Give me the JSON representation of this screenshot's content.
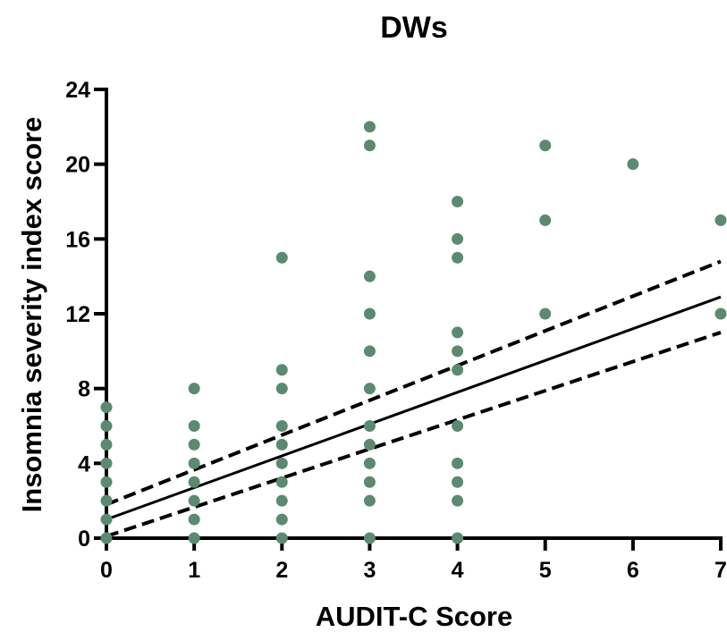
{
  "chart_data": {
    "type": "scatter",
    "title": "DWs",
    "xlabel": "AUDIT-C Score",
    "ylabel": "Insomnia severity index score",
    "xlim": [
      0,
      7
    ],
    "ylim": [
      0,
      24
    ],
    "xticks": [
      0,
      1,
      2,
      3,
      4,
      5,
      6,
      7
    ],
    "yticks": [
      0,
      4,
      8,
      12,
      16,
      20,
      24
    ],
    "grid": false,
    "legend": "none",
    "points": [
      {
        "x": 0,
        "y": 0
      },
      {
        "x": 0,
        "y": 1
      },
      {
        "x": 0,
        "y": 2
      },
      {
        "x": 0,
        "y": 3
      },
      {
        "x": 0,
        "y": 4
      },
      {
        "x": 0,
        "y": 5
      },
      {
        "x": 0,
        "y": 6
      },
      {
        "x": 0,
        "y": 7
      },
      {
        "x": 1,
        "y": 0
      },
      {
        "x": 1,
        "y": 1
      },
      {
        "x": 1,
        "y": 2
      },
      {
        "x": 1,
        "y": 3
      },
      {
        "x": 1,
        "y": 4
      },
      {
        "x": 1,
        "y": 5
      },
      {
        "x": 1,
        "y": 6
      },
      {
        "x": 1,
        "y": 8
      },
      {
        "x": 2,
        "y": 0
      },
      {
        "x": 2,
        "y": 1
      },
      {
        "x": 2,
        "y": 2
      },
      {
        "x": 2,
        "y": 3
      },
      {
        "x": 2,
        "y": 4
      },
      {
        "x": 2,
        "y": 5
      },
      {
        "x": 2,
        "y": 6
      },
      {
        "x": 2,
        "y": 8
      },
      {
        "x": 2,
        "y": 9
      },
      {
        "x": 2,
        "y": 15
      },
      {
        "x": 3,
        "y": 0
      },
      {
        "x": 3,
        "y": 2
      },
      {
        "x": 3,
        "y": 3
      },
      {
        "x": 3,
        "y": 4
      },
      {
        "x": 3,
        "y": 5
      },
      {
        "x": 3,
        "y": 6
      },
      {
        "x": 3,
        "y": 8
      },
      {
        "x": 3,
        "y": 10
      },
      {
        "x": 3,
        "y": 12
      },
      {
        "x": 3,
        "y": 14
      },
      {
        "x": 3,
        "y": 21
      },
      {
        "x": 3,
        "y": 22
      },
      {
        "x": 4,
        "y": 0
      },
      {
        "x": 4,
        "y": 2
      },
      {
        "x": 4,
        "y": 3
      },
      {
        "x": 4,
        "y": 4
      },
      {
        "x": 4,
        "y": 6
      },
      {
        "x": 4,
        "y": 9
      },
      {
        "x": 4,
        "y": 10
      },
      {
        "x": 4,
        "y": 11
      },
      {
        "x": 4,
        "y": 15
      },
      {
        "x": 4,
        "y": 16
      },
      {
        "x": 4,
        "y": 18
      },
      {
        "x": 5,
        "y": 12
      },
      {
        "x": 5,
        "y": 17
      },
      {
        "x": 5,
        "y": 21
      },
      {
        "x": 6,
        "y": 20
      },
      {
        "x": 7,
        "y": 12
      },
      {
        "x": 7,
        "y": 17
      }
    ],
    "regression_line": {
      "x": [
        0,
        7
      ],
      "y": [
        1.0,
        12.9
      ]
    },
    "confidence_band_upper": {
      "x": [
        0,
        7
      ],
      "y": [
        1.8,
        14.8
      ]
    },
    "confidence_band_lower": {
      "x": [
        0,
        7
      ],
      "y": [
        0.1,
        11.0
      ]
    },
    "marker_color": "#5a8a70",
    "line_color": "#000000"
  }
}
